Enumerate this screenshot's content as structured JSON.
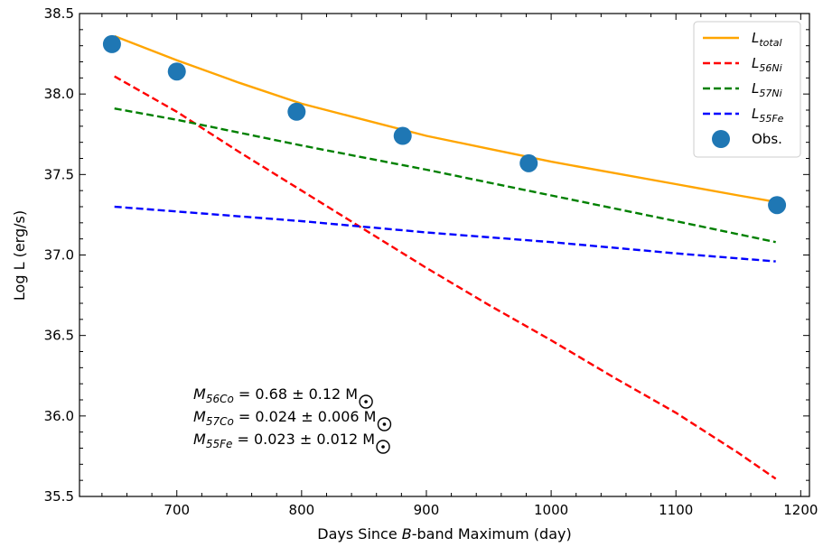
{
  "chart_data": {
    "type": "line",
    "xlabel": {
      "pre": "Days Since ",
      "em": "B",
      "post": "-band Maximum (day)"
    },
    "ylabel": "Log L (erg/s)",
    "xlim": [
      622,
      1207
    ],
    "ylim": [
      35.5,
      38.5
    ],
    "xticks": [
      700,
      800,
      900,
      1000,
      1100,
      1200
    ],
    "yticks": [
      35.5,
      36.0,
      36.5,
      37.0,
      37.5,
      38.0,
      38.5
    ],
    "xminor_step": 20,
    "yminor_step": 0.1,
    "series": [
      {
        "name": "L_total",
        "label_main": "L",
        "label_sub": "total",
        "color": "#ffa500",
        "style": "solid",
        "x": [
          650,
          700,
          750,
          800,
          850,
          900,
          950,
          1000,
          1050,
          1100,
          1150,
          1180
        ],
        "y": [
          38.36,
          38.21,
          38.07,
          37.94,
          37.84,
          37.74,
          37.66,
          37.58,
          37.51,
          37.44,
          37.37,
          37.33
        ]
      },
      {
        "name": "L_56Ni",
        "label_main": "L",
        "label_sub": "56Ni",
        "color": "#ff0000",
        "style": "dashed",
        "x": [
          650,
          700,
          750,
          800,
          850,
          900,
          950,
          1000,
          1050,
          1100,
          1150,
          1180
        ],
        "y": [
          38.11,
          37.89,
          37.64,
          37.4,
          37.16,
          36.92,
          36.69,
          36.47,
          36.24,
          36.02,
          35.77,
          35.61
        ]
      },
      {
        "name": "L_57Ni",
        "label_main": "L",
        "label_sub": "57Ni",
        "color": "#008000",
        "style": "dashed",
        "x": [
          650,
          700,
          800,
          900,
          1000,
          1100,
          1180
        ],
        "y": [
          37.91,
          37.84,
          37.68,
          37.53,
          37.37,
          37.21,
          37.08
        ]
      },
      {
        "name": "L_55Fe",
        "label_main": "L",
        "label_sub": "55Fe",
        "color": "#0000ff",
        "style": "dashed",
        "x": [
          650,
          700,
          800,
          900,
          1000,
          1100,
          1180
        ],
        "y": [
          37.3,
          37.27,
          37.21,
          37.14,
          37.08,
          37.01,
          36.96
        ]
      }
    ],
    "observations": {
      "name": "Obs.",
      "color": "#1f77b4",
      "x": [
        648,
        700,
        796,
        881,
        982,
        1181
      ],
      "y": [
        38.31,
        38.14,
        37.89,
        37.74,
        37.57,
        37.31
      ]
    },
    "legend_placement": "top-right",
    "annotations": [
      {
        "main": "M",
        "sub": "56Co",
        "text": " = 0.68 ± 0.12 M"
      },
      {
        "main": "M",
        "sub": "57Co",
        "text": " = 0.024 ± 0.006 M"
      },
      {
        "main": "M",
        "sub": "55Fe",
        "text": " = 0.023 ± 0.012 M"
      }
    ]
  }
}
